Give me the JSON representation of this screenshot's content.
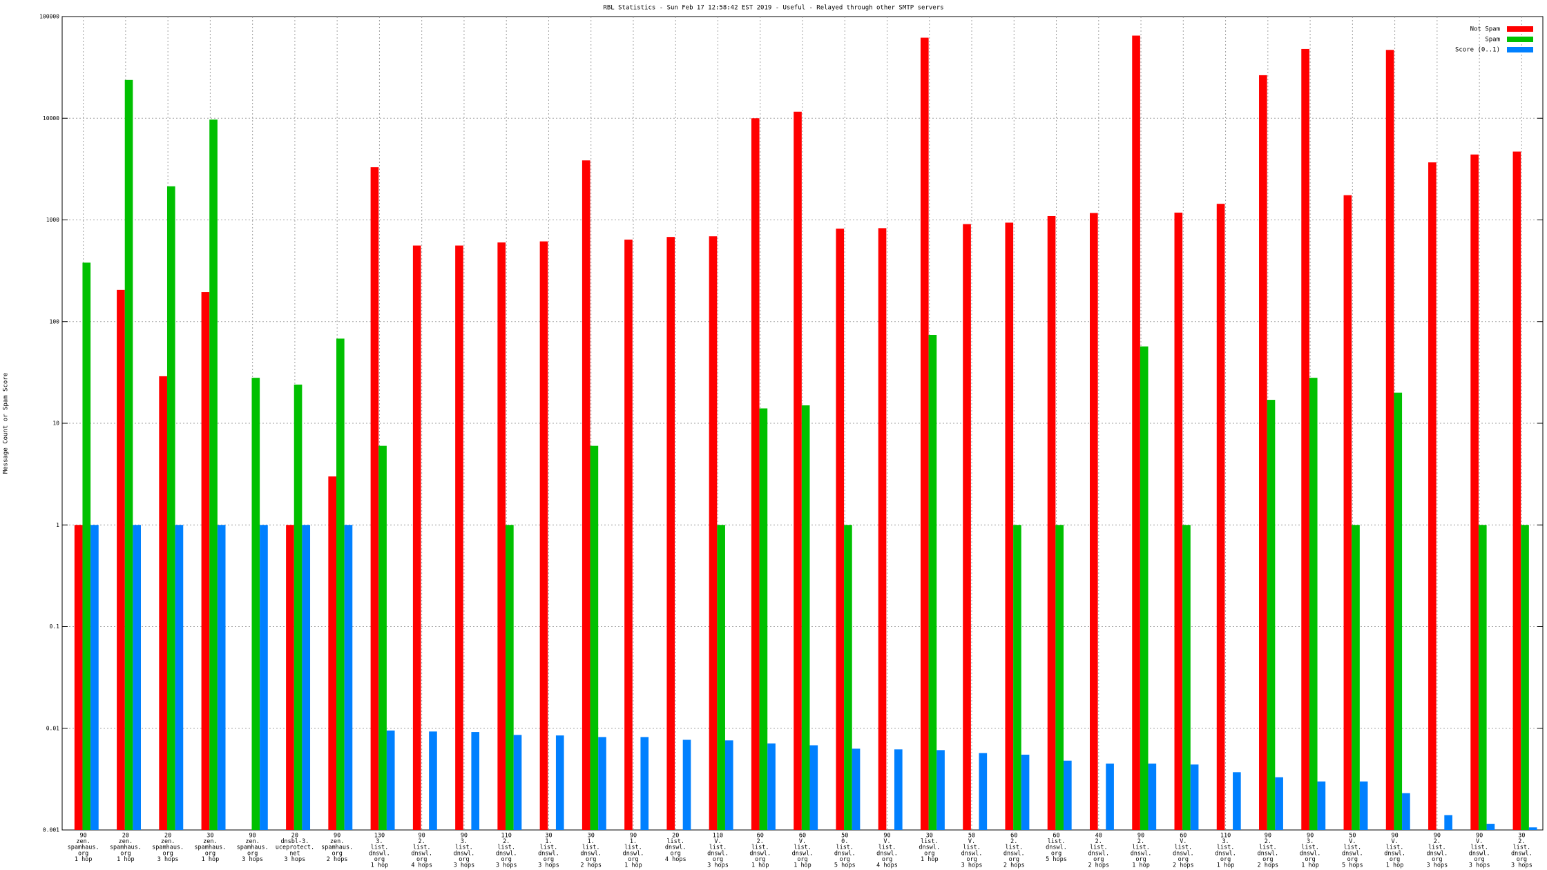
{
  "chart_data": {
    "type": "bar",
    "title": "RBL Statistics - Sun Feb 17 12:58:42 EST 2019 - Useful - Relayed through other SMTP servers",
    "ylabel": "Message Count or Spam Score",
    "log_y": true,
    "grid": true,
    "legend": "top-right",
    "ylim": [
      0.001,
      100000
    ],
    "yticks": [
      0.001,
      0.01,
      0.1,
      1,
      10,
      100,
      1000,
      10000,
      100000
    ],
    "categories": [
      [
        "90",
        "zen.",
        "spamhaus.",
        "org",
        "1 hop"
      ],
      [
        "20",
        "zen.",
        "spamhaus.",
        "org",
        "1 hop"
      ],
      [
        "20",
        "zen.",
        "spamhaus.",
        "org",
        "3 hops"
      ],
      [
        "30",
        "zen.",
        "spamhaus.",
        "org",
        "1 hop"
      ],
      [
        "90",
        "zen.",
        "spamhaus.",
        "org",
        "3 hops"
      ],
      [
        "20",
        "dnsbl-3.",
        "uceprotect.",
        "net",
        "3 hops"
      ],
      [
        "90",
        "zen.",
        "spamhaus.",
        "org",
        "2 hops"
      ],
      [
        "130",
        "3.",
        "list.",
        "dnswl.",
        "org",
        "1 hop"
      ],
      [
        "90",
        "2.",
        "list.",
        "dnswl.",
        "org",
        "4 hops"
      ],
      [
        "90",
        "3.",
        "list.",
        "dnswl.",
        "org",
        "3 hops"
      ],
      [
        "110",
        "2.",
        "list.",
        "dnswl.",
        "org",
        "3 hops"
      ],
      [
        "30",
        "1.",
        "list.",
        "dnswl.",
        "org",
        "3 hops"
      ],
      [
        "30",
        "1.",
        "list.",
        "dnswl.",
        "org",
        "2 hops"
      ],
      [
        "90",
        "1.",
        "list.",
        "dnswl.",
        "org",
        "1 hop"
      ],
      [
        "20",
        "list.",
        "dnswl.",
        "org",
        "4 hops"
      ],
      [
        "110",
        "V.",
        "list.",
        "dnswl.",
        "org",
        "3 hops"
      ],
      [
        "60",
        "2.",
        "list.",
        "dnswl.",
        "org",
        "1 hop"
      ],
      [
        "60",
        "V.",
        "list.",
        "dnswl.",
        "org",
        "1 hop"
      ],
      [
        "50",
        "0.",
        "list.",
        "dnswl.",
        "org",
        "5 hops"
      ],
      [
        "90",
        "V.",
        "list.",
        "dnswl.",
        "org",
        "4 hops"
      ],
      [
        "30",
        "list.",
        "dnswl.",
        "org",
        "1 hop"
      ],
      [
        "50",
        "V.",
        "list.",
        "dnswl.",
        "org",
        "3 hops"
      ],
      [
        "60",
        "2.",
        "list.",
        "dnswl.",
        "org",
        "2 hops"
      ],
      [
        "60",
        "list.",
        "dnswl.",
        "org",
        "5 hops"
      ],
      [
        "40",
        "2.",
        "list.",
        "dnswl.",
        "org",
        "2 hops"
      ],
      [
        "90",
        "2.",
        "list.",
        "dnswl.",
        "org",
        "1 hop"
      ],
      [
        "60",
        "V.",
        "list.",
        "dnswl.",
        "org",
        "2 hops"
      ],
      [
        "110",
        "3.",
        "list.",
        "dnswl.",
        "org",
        "1 hop"
      ],
      [
        "90",
        "2.",
        "list.",
        "dnswl.",
        "org",
        "2 hops"
      ],
      [
        "90",
        "3.",
        "list.",
        "dnswl.",
        "org",
        "1 hop"
      ],
      [
        "50",
        "V.",
        "list.",
        "dnswl.",
        "org",
        "5 hops"
      ],
      [
        "90",
        "V.",
        "list.",
        "dnswl.",
        "org",
        "1 hop"
      ],
      [
        "90",
        "2.",
        "list.",
        "dnswl.",
        "org",
        "3 hops"
      ],
      [
        "90",
        "V.",
        "list.",
        "dnswl.",
        "org",
        "3 hops"
      ],
      [
        "30",
        "2.",
        "list.",
        "dnswl.",
        "org",
        "3 hops"
      ]
    ],
    "series": [
      {
        "name": "Not Spam",
        "color": "#ff0000",
        "values": [
          1,
          205,
          29,
          195,
          null,
          1,
          3,
          3300,
          560,
          560,
          600,
          615,
          3850,
          640,
          680,
          690,
          10000,
          11600,
          820,
          830,
          62000,
          910,
          940,
          1090,
          1170,
          65000,
          1180,
          1440,
          26500,
          48000,
          1750,
          47000,
          3680,
          4400,
          4700
        ]
      },
      {
        "name": "Spam",
        "color": "#00c000",
        "values": [
          380,
          23800,
          2140,
          9700,
          28,
          24,
          68,
          6,
          null,
          null,
          1,
          null,
          6,
          null,
          null,
          1,
          14,
          15,
          1,
          null,
          74,
          null,
          1,
          1,
          null,
          57,
          1,
          null,
          17,
          28,
          1,
          20,
          null,
          1,
          1
        ]
      },
      {
        "name": "Score (0..1)",
        "color": "#0080ff",
        "values": [
          1,
          1,
          1,
          1,
          1,
          1,
          1,
          0.0095,
          0.0093,
          0.0092,
          0.0086,
          0.0085,
          0.0082,
          0.0082,
          0.0077,
          0.0076,
          0.0071,
          0.0068,
          0.0063,
          0.0062,
          0.0061,
          0.0057,
          0.0055,
          0.0048,
          0.0045,
          0.0045,
          0.0044,
          0.0037,
          0.0033,
          0.003,
          0.003,
          0.0023,
          0.0014,
          0.00115,
          0.00106
        ]
      }
    ]
  }
}
